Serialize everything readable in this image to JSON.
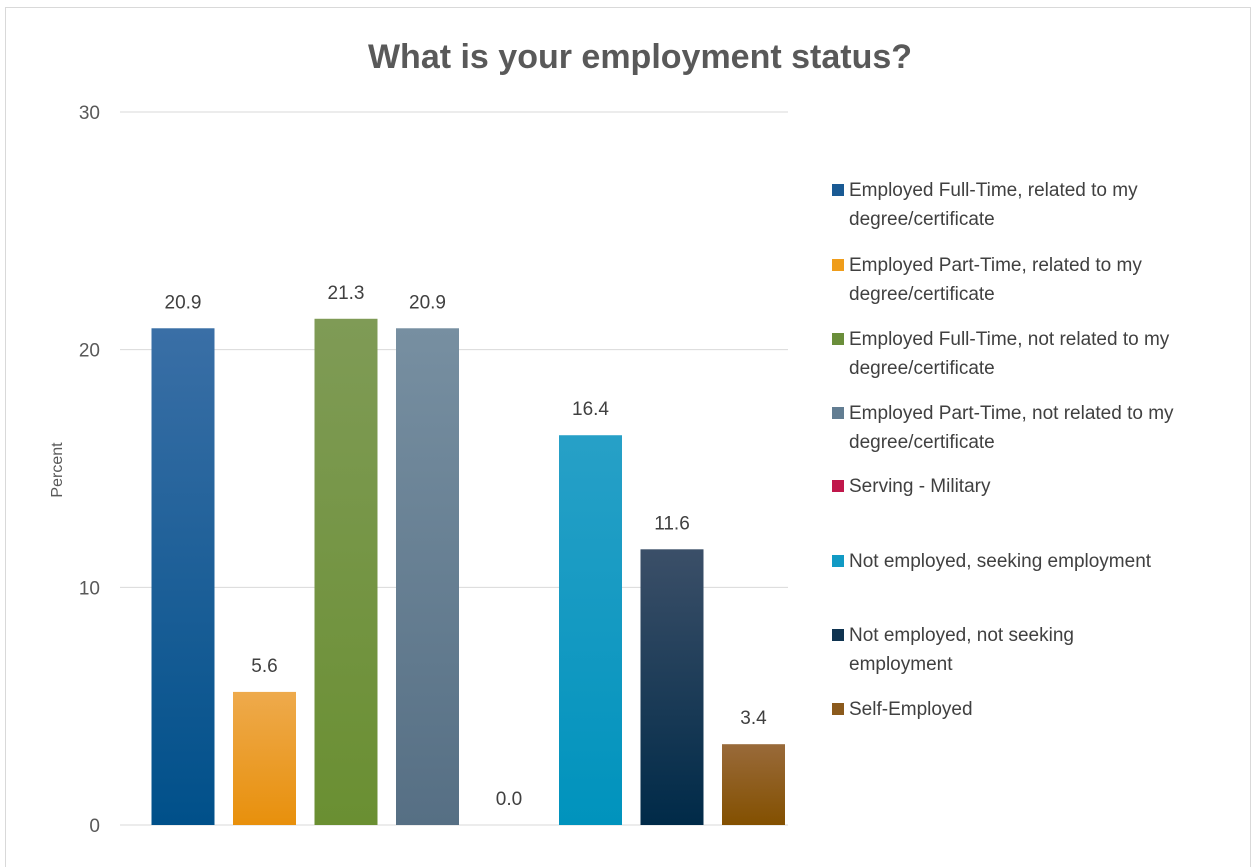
{
  "chart_data": {
    "type": "bar",
    "title": "What is your employment status?",
    "xlabel": "",
    "ylabel": "Percent",
    "ylim": [
      0,
      30
    ],
    "yticks": [
      0,
      10,
      20,
      30
    ],
    "grid": true,
    "legend_position": "right",
    "series": [
      {
        "name": "Employed Full-Time, related to my degree/certificate",
        "value": 20.9,
        "label": "20.9",
        "color": "#1a5a94",
        "color_top": "#3a6fa6",
        "color_bottom": "#00508a",
        "legend_lines": [
          "Employed Full-Time, related to my",
          "degree/certificate"
        ]
      },
      {
        "name": "Employed Part-Time, related to my degree/certificate",
        "value": 5.6,
        "label": "5.6",
        "color": "#ef9d1b",
        "color_top": "#eeaa4c",
        "color_bottom": "#e8900c",
        "legend_lines": [
          "Employed Part-Time, related to my",
          "degree/certificate"
        ]
      },
      {
        "name": "Employed Full-Time, not related to my degree/certificate",
        "value": 21.3,
        "label": "21.3",
        "color": "#6a8e3a",
        "color_top": "#7f9b56",
        "color_bottom": "#6a8f32",
        "legend_lines": [
          "Employed Full-Time, not related to my",
          "degree/certificate"
        ]
      },
      {
        "name": "Employed Part-Time, not related to my degree/certificate",
        "value": 20.9,
        "label": "20.9",
        "color": "#627d92",
        "color_top": "#778fa1",
        "color_bottom": "#566f84",
        "legend_lines": [
          "Employed Part-Time, not related to my",
          "degree/certificate"
        ]
      },
      {
        "name": "Serving - Military",
        "value": 0.0,
        "label": "0.0",
        "color": "#c0174b",
        "color_top": "#c0174b",
        "color_bottom": "#c0174b",
        "legend_lines": [
          "Serving - Military"
        ]
      },
      {
        "name": "Not employed, seeking employment",
        "value": 16.4,
        "label": "16.4",
        "color": "#119ac4",
        "color_top": "#27a0c7",
        "color_bottom": "#0093bd",
        "legend_lines": [
          "Not employed, seeking employment"
        ]
      },
      {
        "name": "Not employed, not seeking employment",
        "value": 11.6,
        "label": "11.6",
        "color": "#0f3350",
        "color_top": "#3b4f68",
        "color_bottom": "#002a48",
        "legend_lines": [
          "Not employed, not seeking",
          "employment"
        ]
      },
      {
        "name": "Self-Employed",
        "value": 3.4,
        "label": "3.4",
        "color": "#8b5a1c",
        "color_top": "#996a3a",
        "color_bottom": "#835000",
        "legend_lines": [
          "Self-Employed"
        ]
      }
    ]
  }
}
